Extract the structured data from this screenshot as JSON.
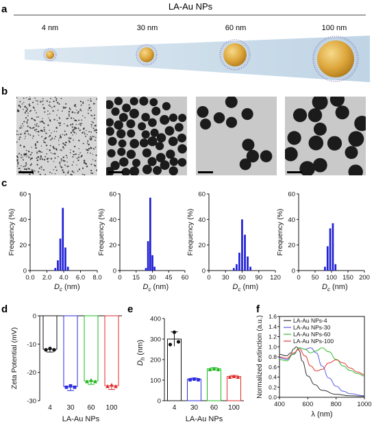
{
  "panel_labels": {
    "a": "a",
    "b": "b",
    "c": "c",
    "d": "d",
    "e": "e",
    "f": "f"
  },
  "panel_a": {
    "title": "LA-Au NPs",
    "sizes": [
      "4 nm",
      "30 nm",
      "60 nm",
      "100 nm"
    ],
    "colors": {
      "wedge": "#c9dcea",
      "gold": "#d9a53a",
      "ligand": "#6a5aa8"
    }
  },
  "panel_b": {
    "colors": {
      "background": "#c8c8c8",
      "particle": "#1c1c1c"
    }
  },
  "chart_data": [
    {
      "type": "bar",
      "panel": "c1",
      "xlabel_main": "D",
      "xlabel_sub": "c",
      "xlabel_unit": " (nm)",
      "ylabel": "Frequency (%)",
      "xlim": [
        0,
        8
      ],
      "ylim": [
        0,
        60
      ],
      "xticks": [
        "0.0",
        "2.0",
        "4.0",
        "6.0",
        "8.0"
      ],
      "yticks": [
        "0",
        "20",
        "40",
        "60"
      ],
      "x": [
        3.0,
        3.3,
        3.6,
        3.9,
        4.2,
        4.5
      ],
      "values": [
        2,
        8,
        25,
        49,
        18,
        3
      ],
      "color": "#1f1fd6"
    },
    {
      "type": "bar",
      "panel": "c2",
      "xlabel_main": "D",
      "xlabel_sub": "c",
      "xlabel_unit": " (nm)",
      "ylabel": "Frequency (%)",
      "xlim": [
        0,
        60
      ],
      "ylim": [
        0,
        60
      ],
      "xticks": [
        "0",
        "15",
        "30",
        "45",
        "60"
      ],
      "yticks": [
        "0",
        "20",
        "40",
        "60"
      ],
      "x": [
        24,
        26,
        28,
        30,
        32
      ],
      "values": [
        2,
        23,
        57,
        12,
        3
      ],
      "color": "#1f1fd6"
    },
    {
      "type": "bar",
      "panel": "c3",
      "xlabel_main": "D",
      "xlabel_sub": "c",
      "xlabel_unit": " (nm)",
      "ylabel": "Frequency (%)",
      "xlim": [
        0,
        120
      ],
      "ylim": [
        0,
        60
      ],
      "xticks": [
        "0",
        "30",
        "60",
        "90",
        "120"
      ],
      "yticks": [
        "0",
        "20",
        "40",
        "60"
      ],
      "x": [
        45,
        50,
        55,
        60,
        65,
        70,
        75
      ],
      "values": [
        2,
        5,
        14,
        40,
        28,
        11,
        3
      ],
      "color": "#1f1fd6"
    },
    {
      "type": "bar",
      "panel": "c4",
      "xlabel_main": "D",
      "xlabel_sub": "c",
      "xlabel_unit": " (nm)",
      "ylabel": "Frequency (%)",
      "xlim": [
        0,
        200
      ],
      "ylim": [
        0,
        60
      ],
      "xticks": [
        "0",
        "50",
        "100",
        "150",
        "200"
      ],
      "yticks": [
        "0",
        "20",
        "40",
        "60"
      ],
      "x": [
        80,
        88,
        96,
        104,
        112
      ],
      "values": [
        3,
        19,
        33,
        37,
        5
      ],
      "color": "#1f1fd6"
    },
    {
      "type": "bar",
      "panel": "d",
      "ylabel": "Zeta Potential (mV)",
      "xlabel": "LA-Au NPs",
      "ylim": [
        -30,
        0
      ],
      "yticks": [
        "0",
        "-10",
        "-20",
        "-30"
      ],
      "categories": [
        "4",
        "30",
        "60",
        "100"
      ],
      "values": [
        -11.8,
        -25.0,
        -23.0,
        -24.7
      ],
      "errors": [
        0.3,
        0.7,
        0.5,
        0.6
      ],
      "colors": [
        "#111111",
        "#2a2ae0",
        "#18b818",
        "#e02a2a"
      ]
    },
    {
      "type": "bar",
      "panel": "e",
      "ylabel_main": "D",
      "ylabel_sub": "h",
      "ylabel_unit": " (nm)",
      "xlabel": "LA-Au NPs",
      "ylim": [
        0,
        400
      ],
      "yticks": [
        "0",
        "100",
        "200",
        "300",
        "400"
      ],
      "categories": [
        "4",
        "30",
        "60",
        "100"
      ],
      "values": [
        300,
        105,
        155,
        118
      ],
      "errors": [
        35,
        5,
        6,
        5
      ],
      "colors": [
        "#111111",
        "#2a2ae0",
        "#18b818",
        "#e02a2a"
      ]
    },
    {
      "type": "line",
      "panel": "f",
      "ylabel": "Normalized extinction (a.u.)",
      "xlabel": "λ (nm)",
      "xlim": [
        400,
        1000
      ],
      "ylim": [
        0.0,
        1.6
      ],
      "xticks": [
        "400",
        "600",
        "800",
        "1000"
      ],
      "yticks": [
        "0.0",
        "0.2",
        "0.4",
        "0.6",
        "0.8",
        "1.0",
        "1.2",
        "1.4",
        "1.6"
      ],
      "legend": "top-right",
      "series": [
        {
          "name": "LA-Au NPs-4",
          "color": "#333333",
          "x": [
            400,
            450,
            480,
            500,
            520,
            540,
            560,
            600,
            650,
            700,
            800,
            900,
            1000
          ],
          "y": [
            0.85,
            0.82,
            0.88,
            0.96,
            1.0,
            0.92,
            0.72,
            0.42,
            0.25,
            0.14,
            0.06,
            0.03,
            0.02
          ]
        },
        {
          "name": "LA-Au NPs-30",
          "color": "#5a5ae6",
          "x": [
            400,
            450,
            500,
            540,
            580,
            620,
            660,
            700,
            750,
            800,
            850,
            900,
            1000
          ],
          "y": [
            0.78,
            0.75,
            0.85,
            0.98,
            0.95,
            0.98,
            0.88,
            0.62,
            0.38,
            0.22,
            0.12,
            0.07,
            0.03
          ]
        },
        {
          "name": "LA-Au NPs-60",
          "color": "#2dbd2d",
          "x": [
            400,
            450,
            500,
            540,
            580,
            620,
            660,
            700,
            750,
            800,
            850,
            900,
            950,
            1000
          ],
          "y": [
            0.75,
            0.72,
            0.86,
            0.98,
            0.95,
            0.88,
            0.92,
            0.98,
            0.9,
            0.75,
            0.62,
            0.53,
            0.47,
            0.42
          ]
        },
        {
          "name": "LA-Au NPs-100",
          "color": "#e23535",
          "x": [
            400,
            450,
            500,
            540,
            580,
            620,
            660,
            700,
            750,
            800,
            850,
            900,
            950,
            1000
          ],
          "y": [
            0.8,
            0.77,
            0.88,
            0.96,
            0.82,
            0.62,
            0.52,
            0.55,
            0.68,
            0.74,
            0.68,
            0.58,
            0.5,
            0.45
          ]
        }
      ]
    }
  ]
}
